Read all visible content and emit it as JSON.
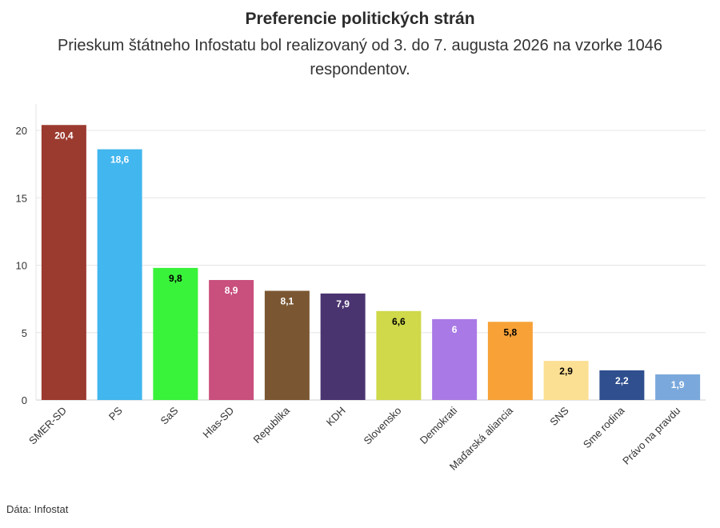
{
  "title": "Preferencie politických strán",
  "subtitle": "Prieskum štátneho Infostatu bol realizovaný od 3. do 7. augusta 2026 na vzorke 1046 respondentov.",
  "source": "Dáta: Infostat",
  "chart_data": {
    "type": "bar",
    "categories": [
      "SMER-SD",
      "PS",
      "SaS",
      "Hlas-SD",
      "Republika",
      "KDH",
      "Slovensko",
      "Demokrati",
      "Maďarská aliancia",
      "SNS",
      "Sme rodina",
      "Právo na pravdu"
    ],
    "values": [
      20.4,
      18.6,
      9.8,
      8.9,
      8.1,
      7.9,
      6.6,
      6,
      5.8,
      2.9,
      2.2,
      1.9
    ],
    "labels": [
      "20,4",
      "18,6",
      "9,8",
      "8,9",
      "8,1",
      "7,9",
      "6,6",
      "6",
      "5,8",
      "2,9",
      "2,2",
      "1,9"
    ],
    "colors": [
      "#9b3a2f",
      "#42b6ee",
      "#39f23a",
      "#c94f7c",
      "#7a5732",
      "#4a3470",
      "#cfd94a",
      "#a97ae6",
      "#f7a137",
      "#fbdf93",
      "#2f4f8e",
      "#7aa8dc"
    ],
    "label_colors": [
      "#ffffff",
      "#ffffff",
      "#000000",
      "#ffffff",
      "#ffffff",
      "#ffffff",
      "#000000",
      "#ffffff",
      "#000000",
      "#000000",
      "#ffffff",
      "#ffffff"
    ],
    "yticks": [
      0,
      5,
      10,
      15,
      20
    ],
    "ylim": [
      0,
      21
    ],
    "grid": true,
    "xlabel": "",
    "ylabel": ""
  }
}
